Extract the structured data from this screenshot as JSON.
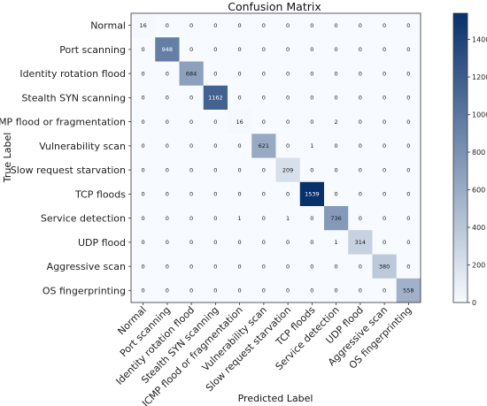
{
  "chart_data": {
    "type": "heatmap",
    "title": "Confusion Matrix",
    "xlabel": "Predicted Label",
    "ylabel": "True Label",
    "labels": [
      "Normal",
      "Port scanning",
      "Identity rotation flood",
      "Stealth SYN scanning",
      "ICMP flood or fragmentation",
      "Vulnerability scan",
      "Slow request starvation",
      "TCP floods",
      "Service detection",
      "UDP flood",
      "Aggressive scan",
      "OS fingerprinting"
    ],
    "matrix": [
      [
        16,
        0,
        0,
        0,
        0,
        0,
        0,
        0,
        0,
        0,
        0,
        0
      ],
      [
        0,
        948,
        0,
        0,
        0,
        0,
        0,
        0,
        0,
        0,
        0,
        0
      ],
      [
        0,
        0,
        684,
        0,
        0,
        0,
        0,
        0,
        0,
        0,
        0,
        0
      ],
      [
        0,
        0,
        0,
        1162,
        0,
        0,
        0,
        0,
        0,
        0,
        0,
        0
      ],
      [
        0,
        0,
        0,
        0,
        16,
        0,
        0,
        0,
        2,
        0,
        0,
        0
      ],
      [
        0,
        0,
        0,
        0,
        0,
        621,
        0,
        1,
        0,
        0,
        0,
        0
      ],
      [
        0,
        0,
        0,
        0,
        0,
        0,
        209,
        0,
        0,
        0,
        0,
        0
      ],
      [
        0,
        0,
        0,
        0,
        0,
        0,
        0,
        1539,
        0,
        0,
        0,
        0
      ],
      [
        0,
        0,
        0,
        0,
        1,
        0,
        1,
        0,
        736,
        0,
        0,
        0
      ],
      [
        0,
        0,
        0,
        0,
        0,
        0,
        0,
        0,
        1,
        314,
        0,
        0
      ],
      [
        0,
        0,
        0,
        0,
        0,
        0,
        0,
        0,
        0,
        0,
        380,
        0
      ],
      [
        0,
        0,
        0,
        0,
        0,
        0,
        0,
        0,
        0,
        0,
        0,
        558
      ]
    ],
    "colorbar": {
      "min": 0,
      "max": 1539,
      "ticks": [
        0,
        200,
        400,
        600,
        800,
        1000,
        1200,
        1400
      ]
    },
    "colormap": "Blues",
    "colors": {
      "low": "#f7fbff",
      "high": "#08306b"
    }
  }
}
